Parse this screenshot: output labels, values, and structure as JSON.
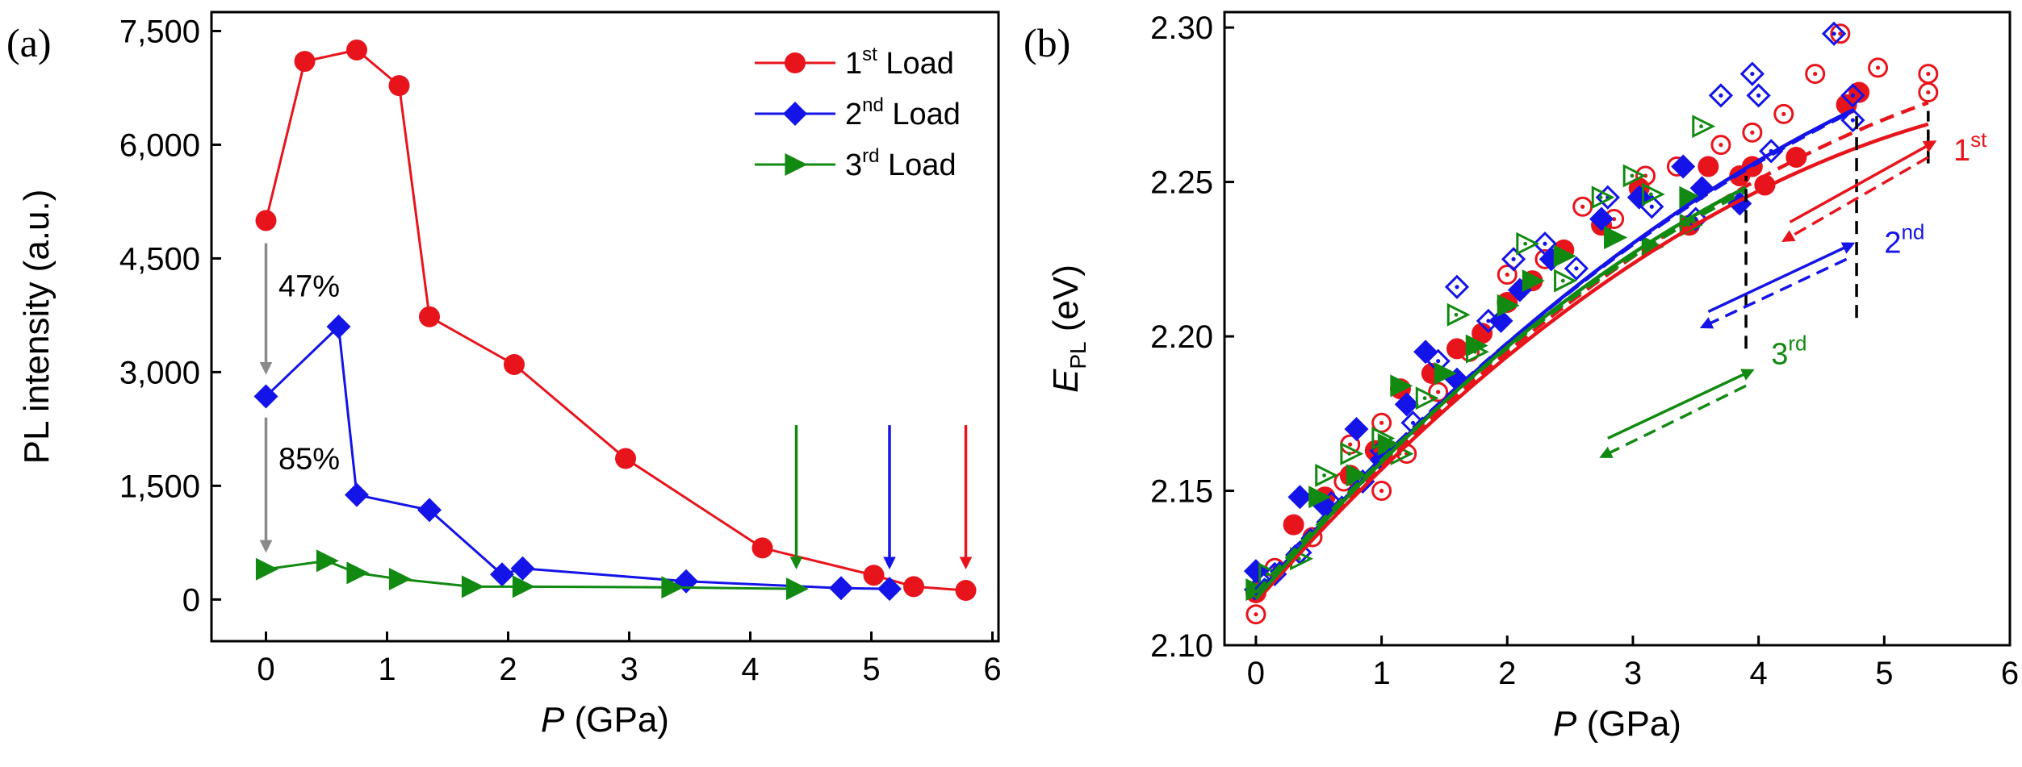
{
  "panel_a_tag": "(a)",
  "panel_b_tag": "(b)",
  "colors": {
    "load1": "#e8141c",
    "load2": "#1414e8",
    "load3": "#128a12",
    "grey": "#8a8a8a"
  },
  "chart_data": [
    {
      "type": "line",
      "title": "",
      "xlabel_var": "P",
      "xlabel_unit": " (GPa)",
      "ylabel": "PL intensity (a.u.)",
      "xlim": [
        -0.45,
        6.05
      ],
      "ylim": [
        -550,
        7750
      ],
      "xticks": [
        0,
        1,
        2,
        3,
        4,
        5,
        6
      ],
      "xtick_labels": [
        "0",
        "1",
        "2",
        "3",
        "4",
        "5",
        "6"
      ],
      "yticks": [
        0,
        1500,
        3000,
        4500,
        6000,
        7500
      ],
      "ytick_labels": [
        "0",
        "1,500",
        "3,000",
        "4,500",
        "6,000",
        "7,500"
      ],
      "legend_position": "top-right",
      "series": [
        {
          "name_base": "1",
          "name_sup": "st",
          "name_rest": " Load",
          "color_key": "load1",
          "marker": "circle",
          "x": [
            0.0,
            0.32,
            0.75,
            1.1,
            1.35,
            2.05,
            2.97,
            4.1,
            5.02,
            5.35,
            5.78
          ],
          "y": [
            5000,
            7100,
            7250,
            6780,
            3730,
            3100,
            1860,
            680,
            320,
            170,
            120
          ]
        },
        {
          "name_base": "2",
          "name_sup": "nd",
          "name_rest": " Load",
          "color_key": "load2",
          "marker": "diamond",
          "x": [
            0.0,
            0.6,
            0.75,
            1.35,
            1.95,
            2.12,
            3.47,
            4.75,
            5.15
          ],
          "y": [
            2680,
            3600,
            1380,
            1180,
            330,
            410,
            240,
            150,
            140
          ]
        },
        {
          "name_base": "3",
          "name_sup": "rd",
          "name_rest": " Load",
          "color_key": "load3",
          "marker": "triangle-right",
          "x": [
            0.0,
            0.5,
            0.75,
            1.1,
            1.7,
            2.12,
            3.35,
            4.38
          ],
          "y": [
            400,
            510,
            350,
            270,
            170,
            170,
            160,
            140
          ]
        }
      ],
      "annotations": [
        {
          "text": "47%",
          "x": 0.05,
          "y": 4000
        },
        {
          "text": "85%",
          "x": 0.05,
          "y": 1720
        }
      ],
      "marker_arrows": [
        {
          "x": 4.38,
          "y_from": 2300,
          "y_to": 430,
          "color_key": "load3"
        },
        {
          "x": 5.15,
          "y_from": 2300,
          "y_to": 430,
          "color_key": "load2"
        },
        {
          "x": 5.78,
          "y_from": 2300,
          "y_to": 430,
          "color_key": "load1"
        }
      ],
      "drop_arrows": [
        {
          "x": 0.0,
          "y_from": 4700,
          "y_to": 3000
        },
        {
          "x": 0.0,
          "y_from": 2400,
          "y_to": 650
        }
      ]
    },
    {
      "type": "scatter",
      "title": "",
      "xlabel_var": "P",
      "xlabel_unit": " (GPa)",
      "ylabel_var": "E",
      "ylabel_sub": "PL",
      "ylabel_unit": " (eV)",
      "xlim": [
        -0.25,
        6.0
      ],
      "ylim": [
        2.1,
        2.305
      ],
      "xticks": [
        0,
        1,
        2,
        3,
        4,
        5,
        6
      ],
      "xtick_labels": [
        "0",
        "1",
        "2",
        "3",
        "4",
        "5",
        "6"
      ],
      "yticks": [
        2.1,
        2.15,
        2.2,
        2.25,
        2.3
      ],
      "ytick_labels": [
        "2.10",
        "2.15",
        "2.20",
        "2.25",
        "2.30"
      ],
      "series": [
        {
          "name": "1st load increasing",
          "color_key": "load1",
          "marker": "filled-circle",
          "x": [
            0.0,
            0.3,
            0.55,
            0.75,
            0.95,
            1.15,
            1.4,
            1.6,
            1.8,
            2.0,
            2.2,
            2.45,
            2.75,
            3.05,
            3.45,
            3.6,
            3.85,
            3.95,
            4.05,
            4.3,
            4.7,
            4.8
          ],
          "y": [
            2.117,
            2.139,
            2.148,
            2.155,
            2.163,
            2.183,
            2.188,
            2.196,
            2.201,
            2.211,
            2.218,
            2.228,
            2.236,
            2.248,
            2.236,
            2.255,
            2.252,
            2.255,
            2.249,
            2.258,
            2.275,
            2.279
          ]
        },
        {
          "name": "1st load decreasing",
          "color_key": "load1",
          "marker": "dotted-circle",
          "x": [
            0.0,
            0.15,
            0.45,
            0.7,
            1.0,
            1.2,
            1.45,
            1.7,
            2.0,
            2.3,
            2.6,
            2.85,
            3.1,
            3.35,
            3.7,
            3.95,
            4.2,
            4.45,
            4.65,
            4.95,
            5.35,
            5.35,
            0.75,
            1.0
          ],
          "y": [
            2.11,
            2.125,
            2.135,
            2.153,
            2.15,
            2.162,
            2.182,
            2.195,
            2.22,
            2.225,
            2.242,
            2.238,
            2.252,
            2.255,
            2.262,
            2.266,
            2.272,
            2.285,
            2.298,
            2.287,
            2.285,
            2.279,
            2.165,
            2.172
          ]
        },
        {
          "name": "2nd load increasing",
          "color_key": "load2",
          "marker": "filled-diamond",
          "x": [
            0.0,
            0.35,
            0.55,
            0.8,
            1.0,
            1.2,
            1.35,
            1.6,
            1.95,
            2.1,
            2.35,
            2.75,
            3.05,
            3.4,
            3.55,
            3.85
          ],
          "y": [
            2.124,
            2.148,
            2.145,
            2.17,
            2.16,
            2.178,
            2.195,
            2.186,
            2.205,
            2.215,
            2.225,
            2.238,
            2.245,
            2.255,
            2.248,
            2.243
          ]
        },
        {
          "name": "2nd load decreasing",
          "color_key": "load2",
          "marker": "dotted-diamond",
          "x": [
            0.0,
            0.15,
            0.35,
            0.6,
            0.85,
            1.0,
            1.25,
            1.45,
            1.6,
            1.85,
            2.05,
            2.3,
            2.55,
            2.8,
            3.15,
            3.5,
            3.7,
            3.95,
            4.0,
            4.1,
            4.6,
            4.75,
            4.75
          ],
          "y": [
            2.118,
            2.123,
            2.13,
            2.146,
            2.153,
            2.163,
            2.172,
            2.192,
            2.216,
            2.205,
            2.225,
            2.23,
            2.222,
            2.245,
            2.242,
            2.238,
            2.278,
            2.285,
            2.278,
            2.26,
            2.298,
            2.278,
            2.27
          ]
        },
        {
          "name": "3rd load increasing",
          "color_key": "load3",
          "marker": "filled-triangle",
          "x": [
            0.0,
            0.5,
            0.8,
            1.05,
            1.15,
            1.5,
            1.75,
            2.0,
            2.2,
            2.45,
            2.85,
            3.15,
            3.45
          ],
          "y": [
            2.118,
            2.148,
            2.155,
            2.165,
            2.184,
            2.188,
            2.197,
            2.21,
            2.218,
            2.226,
            2.232,
            2.229,
            2.245
          ]
        },
        {
          "name": "3rd load decreasing",
          "color_key": "load3",
          "marker": "dotted-triangle",
          "x": [
            0.1,
            0.35,
            0.55,
            0.75,
            1.0,
            1.15,
            1.35,
            1.6,
            1.75,
            2.15,
            2.45,
            2.75,
            2.85,
            3.0,
            3.15,
            3.45,
            3.55
          ],
          "y": [
            2.123,
            2.128,
            2.155,
            2.162,
            2.167,
            2.162,
            2.18,
            2.207,
            2.195,
            2.23,
            2.218,
            2.245,
            2.232,
            2.252,
            2.246,
            2.236,
            2.268
          ]
        }
      ],
      "fits": [
        {
          "color_key": "load1",
          "dashed": false,
          "x_range": [
            0.0,
            5.35
          ],
          "a": 2.114,
          "b": 0.0462,
          "c": -0.00323
        },
        {
          "color_key": "load1",
          "dashed": true,
          "x_range": [
            0.0,
            5.35
          ],
          "a": 2.116,
          "b": 0.0452,
          "c": -0.00287
        },
        {
          "color_key": "load2",
          "dashed": false,
          "x_range": [
            0.0,
            4.75
          ],
          "a": 2.116,
          "b": 0.0465,
          "c": -0.00282
        },
        {
          "color_key": "load2",
          "dashed": true,
          "x_range": [
            0.0,
            4.75
          ],
          "a": 2.118,
          "b": 0.0452,
          "c": -0.00265
        },
        {
          "color_key": "load3",
          "dashed": false,
          "x_range": [
            0.0,
            3.9
          ],
          "a": 2.115,
          "b": 0.0478,
          "c": -0.0035
        },
        {
          "color_key": "load3",
          "dashed": true,
          "x_range": [
            0.0,
            3.9
          ],
          "a": 2.117,
          "b": 0.0462,
          "c": -0.0033
        }
      ],
      "vlines": [
        {
          "x": 3.9,
          "y_from": 2.196,
          "y_to": 2.252
        },
        {
          "x": 4.78,
          "y_from": 2.206,
          "y_to": 2.272
        },
        {
          "x": 5.35,
          "y_from": 2.256,
          "y_to": 2.273
        }
      ],
      "cycle_labels": [
        {
          "base": "1",
          "sup": "st",
          "color_key": "load1",
          "x": 5.55,
          "y": 2.257
        },
        {
          "base": "2",
          "sup": "nd",
          "color_key": "load2",
          "x": 5.0,
          "y": 2.227
        },
        {
          "base": "3",
          "sup": "rd",
          "color_key": "load3",
          "x": 4.1,
          "y": 2.191
        }
      ],
      "cycle_arrows": [
        {
          "color_key": "load1",
          "solid": [
            4.25,
            2.237,
            5.4,
            2.263
          ],
          "dashed": [
            5.35,
            2.258,
            4.2,
            2.231
          ]
        },
        {
          "color_key": "load2",
          "solid": [
            3.6,
            2.208,
            4.75,
            2.23
          ],
          "dashed": [
            4.7,
            2.225,
            3.55,
            2.203
          ]
        },
        {
          "color_key": "load3",
          "solid": [
            2.8,
            2.167,
            3.95,
            2.189
          ],
          "dashed": [
            3.9,
            2.184,
            2.75,
            2.161
          ]
        }
      ]
    }
  ]
}
